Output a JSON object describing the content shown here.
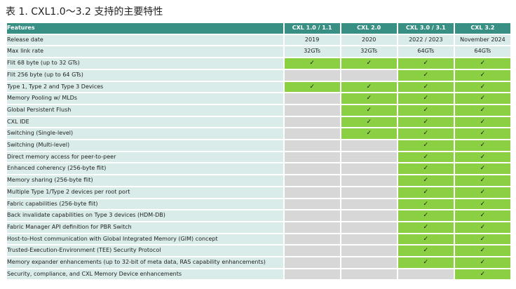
{
  "caption": "表 1. CXL1.0～3.2 支持的主要特性",
  "colors": {
    "header": "#388f84",
    "supported": "#8bd043",
    "unsupported": "#d7d7d7",
    "row_label": "#d9ece9"
  },
  "check_icon": "✓",
  "table": {
    "headers": [
      "Features",
      "CXL 1.0 / 1.1",
      "CXL 2.0",
      "CXL 3.0 / 3.1",
      "CXL 3.2"
    ],
    "info_rows": [
      {
        "label": "Release date",
        "values": [
          "2019",
          "2020",
          "2022 / 2023",
          "November 2024"
        ]
      },
      {
        "label": "Max link rate",
        "values": [
          "32GTs",
          "32GTs",
          "64GTs",
          "64GTs"
        ]
      }
    ],
    "feature_rows": [
      {
        "label": "Flit 68 byte (up to 32 GTs)",
        "support": [
          true,
          true,
          true,
          true
        ]
      },
      {
        "label": "Flit 256 byte (up to 64 GTs)",
        "support": [
          false,
          false,
          true,
          true
        ]
      },
      {
        "label": "Type 1, Type 2 and Type 3 Devices",
        "support": [
          true,
          true,
          true,
          true
        ]
      },
      {
        "label": "Memory Pooling w/ MLDs",
        "support": [
          false,
          true,
          true,
          true
        ]
      },
      {
        "label": "Global Persistent Flush",
        "support": [
          false,
          true,
          true,
          true
        ]
      },
      {
        "label": "CXL IDE",
        "support": [
          false,
          true,
          true,
          true
        ]
      },
      {
        "label": "Switching (Single-level)",
        "support": [
          false,
          true,
          true,
          true
        ]
      },
      {
        "label": "Switching (Multi-level)",
        "support": [
          false,
          false,
          true,
          true
        ]
      },
      {
        "label": "Direct memory access for peer-to-peer",
        "support": [
          false,
          false,
          true,
          true
        ]
      },
      {
        "label": "Enhanced coherency (256-byte flit)",
        "support": [
          false,
          false,
          true,
          true
        ]
      },
      {
        "label": "Memory sharing (256-byte flit)",
        "support": [
          false,
          false,
          true,
          true
        ]
      },
      {
        "label": "Multiple Type 1/Type 2 devices per root port",
        "support": [
          false,
          false,
          true,
          true
        ]
      },
      {
        "label": "Fabric capabilities (256-byte flit)",
        "support": [
          false,
          false,
          true,
          true
        ]
      },
      {
        "label": "Back invalidate capabilities on Type 3 devices (HDM-DB)",
        "support": [
          false,
          false,
          true,
          true
        ]
      },
      {
        "label": "Fabric Manager API definition for PBR Switch",
        "support": [
          false,
          false,
          true,
          true
        ]
      },
      {
        "label": "Host-to-Host communication with Global Integrated Memory (GIM) concept",
        "support": [
          false,
          false,
          true,
          true
        ]
      },
      {
        "label": "Trusted-Execution-Environment (TEE) Security Protocol",
        "support": [
          false,
          false,
          true,
          true
        ]
      },
      {
        "label": "Memory expander enhancements (up to 32-bit of meta data, RAS capability enhancements)",
        "support": [
          false,
          false,
          true,
          true
        ]
      },
      {
        "label": "Security, compliance, and CXL Memory Device enhancements",
        "support": [
          false,
          false,
          false,
          true
        ]
      }
    ]
  }
}
